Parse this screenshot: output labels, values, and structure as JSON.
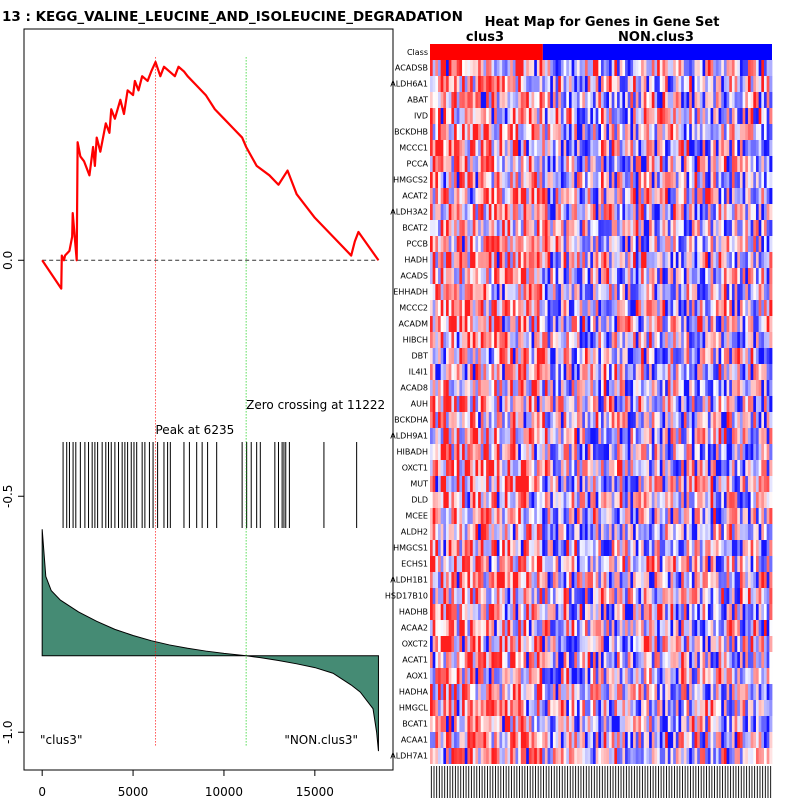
{
  "chart_data": [
    {
      "type": "line",
      "title": "13 : KEGG_VALINE_LEUCINE_AND_ISOLEUCINE_DEGRADATION",
      "xlim": [
        -1000,
        19300
      ],
      "ylim": [
        -1.08,
        0.49
      ],
      "x_ticks": [
        0,
        5000,
        10000,
        15000
      ],
      "x_tick_labels": [
        "0",
        "5000",
        "10000",
        "15000"
      ],
      "y_ticks": [
        0.0,
        -0.5,
        -1.0
      ],
      "y_tick_labels": [
        "0.0",
        "-0.5",
        "-1.0"
      ],
      "enrichment_color": "#ff0000",
      "enrichment_x": [
        0,
        1050,
        1080,
        1200,
        1260,
        1500,
        1650,
        1680,
        1900,
        1950,
        2100,
        2300,
        2600,
        2800,
        2900,
        3000,
        3200,
        3500,
        3700,
        3800,
        4000,
        4300,
        4500,
        4700,
        5000,
        5100,
        5300,
        5500,
        5800,
        6000,
        6235,
        6500,
        6700,
        7000,
        7300,
        7500,
        7800,
        8000,
        8500,
        9000,
        9500,
        10000,
        10500,
        11000,
        11222,
        11800,
        12500,
        13000,
        13500,
        14000,
        15000,
        16000,
        17000,
        17200,
        17400,
        18500
      ],
      "enrichment_y": [
        0.0,
        -0.06,
        0.01,
        0.0,
        0.01,
        0.02,
        0.05,
        0.1,
        0.0,
        0.25,
        0.22,
        0.21,
        0.18,
        0.24,
        0.2,
        0.26,
        0.23,
        0.29,
        0.27,
        0.32,
        0.3,
        0.34,
        0.31,
        0.36,
        0.35,
        0.38,
        0.36,
        0.39,
        0.38,
        0.4,
        0.42,
        0.39,
        0.41,
        0.4,
        0.39,
        0.41,
        0.4,
        0.39,
        0.37,
        0.35,
        0.32,
        0.3,
        0.28,
        0.26,
        0.24,
        0.2,
        0.18,
        0.16,
        0.19,
        0.14,
        0.09,
        0.05,
        0.01,
        0.04,
        0.06,
        0.0
      ],
      "zero_line": 0.0,
      "peak_x": 6235,
      "peak_label": "Peak at 6235",
      "peak_color": "#ff0000",
      "zero_crossing_x": 11222,
      "zero_crossing_label": "Zero crossing at 11222",
      "zero_crossing_color": "#00cc00",
      "hits_x": [
        1150,
        1350,
        1500,
        1700,
        1850,
        2100,
        2350,
        2550,
        2750,
        2900,
        3050,
        3300,
        3500,
        3650,
        3800,
        4000,
        4200,
        4400,
        4550,
        4700,
        4900,
        5050,
        5200,
        5500,
        5650,
        5900,
        6100,
        6350,
        6700,
        6900,
        7050,
        7800,
        8100,
        8500,
        8800,
        9100,
        9600,
        11000,
        11250,
        11500,
        11800,
        12000,
        12800,
        13000,
        13200,
        13300,
        13400,
        13600,
        15500,
        17300
      ],
      "ranked_metric_color": "#458b74",
      "ranked_metric_x": [
        0,
        200,
        500,
        1000,
        2000,
        3000,
        4000,
        5000,
        6000,
        7000,
        8000,
        9000,
        10000,
        11222,
        12000,
        13000,
        14000,
        15000,
        16000,
        17000,
        17500,
        18000,
        18200,
        18400,
        18500
      ],
      "ranked_metric_y": [
        -0.57,
        -0.67,
        -0.7,
        -0.72,
        -0.745,
        -0.765,
        -0.782,
        -0.795,
        -0.806,
        -0.815,
        -0.822,
        -0.828,
        -0.833,
        -0.838,
        -0.842,
        -0.848,
        -0.855,
        -0.863,
        -0.875,
        -0.9,
        -0.915,
        -0.94,
        -0.95,
        -1.0,
        -1.04
      ],
      "ranked_metric_baseline": -0.838,
      "left_class_label": "\"clus3\"",
      "right_class_label": "\"NON.clus3\""
    },
    {
      "type": "heatmap",
      "title": "Heat Map for Genes in Gene Set",
      "class_row_label": "Class",
      "group_labels": [
        "clus3",
        "NON.clus3"
      ],
      "group_colors": [
        "#ff0000",
        "#0000ff"
      ],
      "group_fraction": [
        0.33,
        0.67
      ],
      "n_columns": 128,
      "genes": [
        "ACADSB",
        "ALDH6A1",
        "ABAT",
        "IVD",
        "BCKDHB",
        "MCCC1",
        "PCCA",
        "HMGCS2",
        "ACAT2",
        "ALDH3A2",
        "BCAT2",
        "PCCB",
        "HADH",
        "ACADS",
        "EHHADH",
        "MCCC2",
        "ACADM",
        "HIBCH",
        "DBT",
        "IL4I1",
        "ACAD8",
        "AUH",
        "BCKDHA",
        "ALDH9A1",
        "HIBADH",
        "OXCT1",
        "MUT",
        "DLD",
        "MCEE",
        "ALDH2",
        "HMGCS1",
        "ECHS1",
        "ALDH1B1",
        "HSD17B10",
        "HADHB",
        "ACAA2",
        "OXCT2",
        "ACAT1",
        "AOX1",
        "HADHA",
        "HMGCL",
        "BCAT1",
        "ACAA1",
        "ALDH7A1"
      ]
    }
  ]
}
